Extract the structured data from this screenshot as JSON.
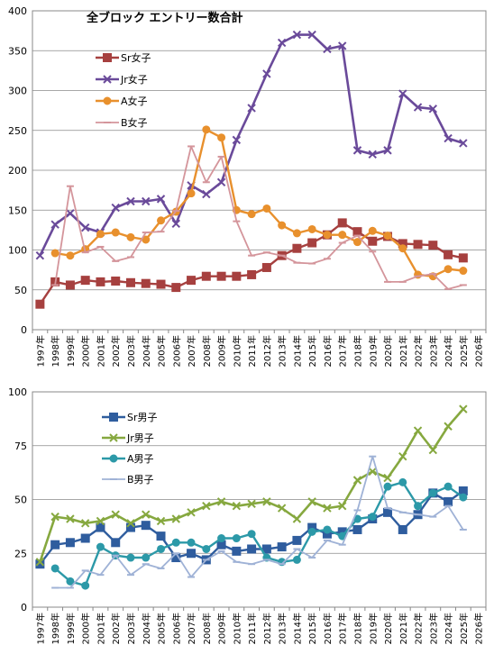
{
  "chart_data": [
    {
      "type": "line",
      "title": "全ブロック エントリー数合計",
      "categories": [
        "1997年",
        "1998年",
        "1999年",
        "2000年",
        "2001年",
        "2002年",
        "2003年",
        "2004年",
        "2005年",
        "2006年",
        "2007年",
        "2008年",
        "2009年",
        "2010年",
        "2011年",
        "2012年",
        "2013年",
        "2014年",
        "2015年",
        "2016年",
        "2017年",
        "2018年",
        "2019年",
        "2020年",
        "2021年",
        "2022年",
        "2023年",
        "2024年",
        "2025年",
        "2026年"
      ],
      "ylim": [
        0,
        400
      ],
      "yticks": [
        "0",
        "50",
        "100",
        "150",
        "200",
        "250",
        "300",
        "350",
        "400"
      ],
      "grid": "horizontal",
      "legend_position": "left",
      "series": [
        {
          "name": "Sr女子",
          "color": "#a6403f",
          "marker": "square",
          "values": [
            32,
            60,
            56,
            62,
            60,
            61,
            59,
            58,
            57,
            53,
            62,
            67,
            67,
            67,
            69,
            78,
            93,
            102,
            109,
            119,
            134,
            123,
            111,
            117,
            108,
            107,
            106,
            94,
            90,
            null
          ]
        },
        {
          "name": "Jr女子",
          "color": "#6a4a9a",
          "marker": "x",
          "values": [
            93,
            132,
            146,
            128,
            122,
            153,
            161,
            161,
            164,
            133,
            181,
            170,
            185,
            238,
            278,
            321,
            360,
            370,
            370,
            352,
            356,
            225,
            220,
            225,
            296,
            279,
            277,
            240,
            234,
            null
          ]
        },
        {
          "name": "A女子",
          "color": "#e8902d",
          "marker": "circle",
          "values": [
            null,
            96,
            93,
            101,
            120,
            122,
            116,
            113,
            137,
            148,
            171,
            251,
            241,
            150,
            145,
            152,
            131,
            121,
            126,
            119,
            119,
            110,
            124,
            118,
            102,
            69,
            67,
            76,
            74,
            null
          ]
        },
        {
          "name": "B女子",
          "color": "#d4959b",
          "marker": "dash",
          "values": [
            null,
            56,
            180,
            97,
            104,
            86,
            91,
            122,
            123,
            149,
            230,
            185,
            217,
            136,
            93,
            97,
            93,
            84,
            83,
            89,
            109,
            118,
            98,
            60,
            60,
            67,
            70,
            51,
            56,
            null
          ]
        }
      ]
    },
    {
      "type": "line",
      "categories": [
        "1997年",
        "1998年",
        "1999年",
        "2000年",
        "2001年",
        "2002年",
        "2003年",
        "2004年",
        "2005年",
        "2006年",
        "2007年",
        "2008年",
        "2009年",
        "2010年",
        "2011年",
        "2012年",
        "2013年",
        "2014年",
        "2015年",
        "2016年",
        "2017年",
        "2018年",
        "2019年",
        "2020年",
        "2021年",
        "2022年",
        "2023年",
        "2024年",
        "2025年",
        "2026年"
      ],
      "ylim": [
        0,
        100
      ],
      "yticks": [
        "0",
        "25",
        "50",
        "75",
        "100"
      ],
      "grid": "horizontal",
      "legend_position": "left",
      "series": [
        {
          "name": "Sr男子",
          "color": "#2f5d9e",
          "marker": "square",
          "values": [
            20,
            29,
            30,
            32,
            37,
            30,
            37,
            38,
            33,
            23,
            25,
            22,
            29,
            26,
            27,
            27,
            28,
            31,
            37,
            34,
            35,
            36,
            41,
            44,
            36,
            43,
            53,
            49,
            54,
            null
          ]
        },
        {
          "name": "Jr男子",
          "color": "#86a83f",
          "marker": "x",
          "values": [
            21,
            42,
            41,
            39,
            40,
            43,
            39,
            43,
            40,
            41,
            44,
            47,
            49,
            47,
            48,
            49,
            46,
            41,
            49,
            46,
            47,
            59,
            63,
            60,
            70,
            82,
            73,
            84,
            92,
            null
          ]
        },
        {
          "name": "A男子",
          "color": "#2c99a8",
          "marker": "circle",
          "values": [
            null,
            18,
            12,
            10,
            28,
            24,
            23,
            23,
            27,
            30,
            30,
            27,
            32,
            32,
            34,
            23,
            21,
            22,
            35,
            36,
            33,
            41,
            42,
            56,
            58,
            47,
            53,
            56,
            51,
            null
          ]
        },
        {
          "name": "B男子",
          "color": "#9fb2d6",
          "marker": "dash",
          "values": [
            null,
            9,
            9,
            17,
            15,
            24,
            15,
            20,
            18,
            25,
            14,
            22,
            26,
            21,
            20,
            22,
            20,
            27,
            23,
            31,
            29,
            45,
            70,
            46,
            44,
            43,
            42,
            47,
            36,
            null
          ]
        }
      ]
    }
  ]
}
